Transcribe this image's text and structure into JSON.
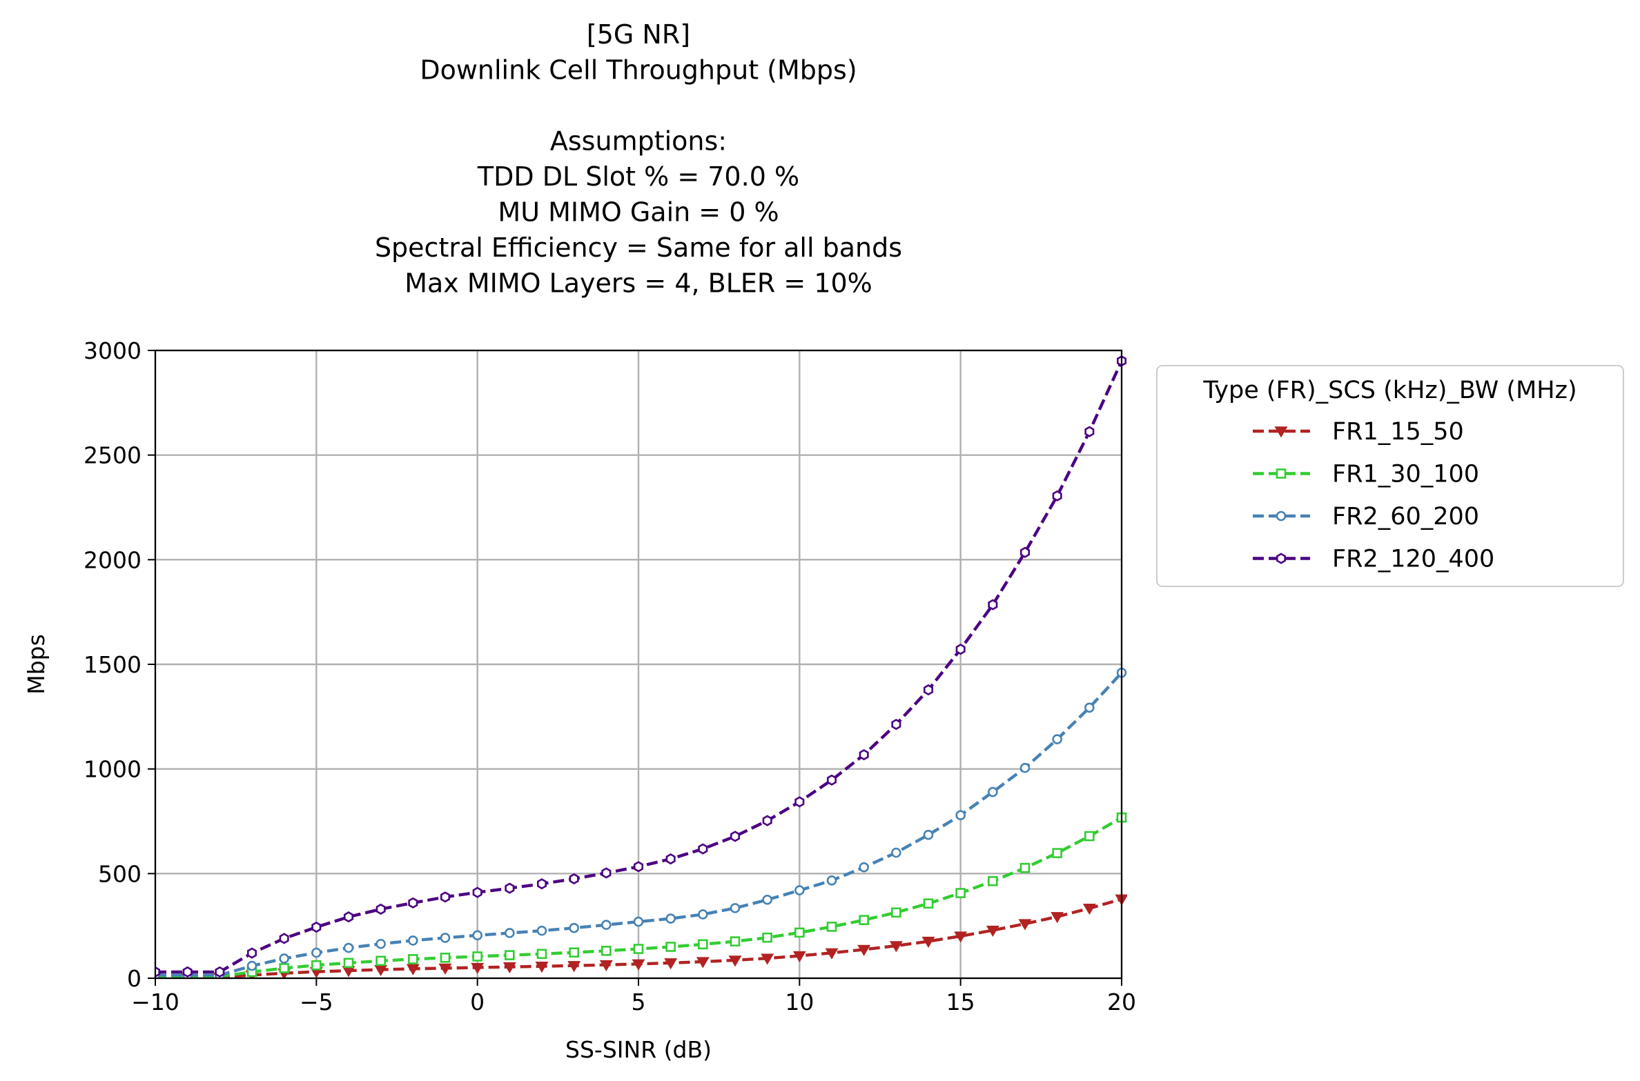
{
  "chart_data": {
    "type": "line",
    "title_lines": [
      "[5G NR]",
      "Downlink Cell Throughput (Mbps)",
      "",
      "Assumptions:",
      "TDD DL Slot % = 70.0 %",
      "MU MIMO Gain = 0 %",
      "Spectral Efficiency = Same for all bands",
      "Max MIMO Layers = 4, BLER = 10%"
    ],
    "xlabel": "SS-SINR (dB)",
    "ylabel": "Mbps",
    "xlim": [
      -10,
      20
    ],
    "ylim": [
      0,
      3000
    ],
    "x_ticks": [
      -10,
      -5,
      0,
      5,
      10,
      15,
      20
    ],
    "x_tick_labels": [
      "−10",
      "−5",
      "0",
      "5",
      "10",
      "15",
      "20"
    ],
    "y_ticks": [
      0,
      500,
      1000,
      1500,
      2000,
      2500,
      3000
    ],
    "y_tick_labels": [
      "0",
      "500",
      "1000",
      "1500",
      "2000",
      "2500",
      "3000"
    ],
    "grid": true,
    "legend": {
      "title": "Type (FR)_SCS (kHz)_BW (MHz)",
      "placement": "outside-upper-right"
    },
    "x": [
      -10,
      -9,
      -8,
      -7,
      -6,
      -5,
      -4,
      -3,
      -2,
      -1,
      0,
      1,
      2,
      3,
      4,
      5,
      6,
      7,
      8,
      9,
      10,
      11,
      12,
      13,
      14,
      15,
      16,
      17,
      18,
      19,
      20
    ],
    "series": [
      {
        "name": "FR1_15_50",
        "color": "#b22222",
        "marker": "triangle-down",
        "values": [
          4,
          4,
          4,
          15,
          24,
          31,
          36,
          41,
          45,
          48,
          51,
          54,
          57,
          60,
          64,
          68,
          73,
          79,
          86,
          95,
          107,
          121,
          137,
          155,
          176,
          201,
          229,
          260,
          294,
          334,
          378
        ]
      },
      {
        "name": "FR1_30_100",
        "color": "#32cd32",
        "marker": "square",
        "values": [
          8,
          8,
          8,
          30,
          48,
          62,
          73,
          83,
          91,
          98,
          104,
          110,
          116,
          123,
          131,
          140,
          150,
          162,
          176,
          194,
          218,
          246,
          278,
          314,
          357,
          407,
          464,
          527,
          598,
          679,
          768
        ]
      },
      {
        "name": "FR2_60_200",
        "color": "#4682b4",
        "marker": "circle",
        "values": [
          15,
          15,
          15,
          59,
          94,
          122,
          145,
          164,
          180,
          193,
          205,
          216,
          227,
          240,
          255,
          270,
          285,
          305,
          335,
          375,
          420,
          467,
          530,
          600,
          685,
          779,
          890,
          1005,
          1142,
          1293,
          1460
        ]
      },
      {
        "name": "FR2_120_400",
        "color": "#4b0082",
        "marker": "hexagon",
        "values": [
          30,
          30,
          30,
          120,
          190,
          244,
          293,
          330,
          360,
          388,
          410,
          430,
          451,
          475,
          503,
          533,
          570,
          618,
          678,
          753,
          843,
          947,
          1068,
          1213,
          1378,
          1572,
          1785,
          2035,
          2305,
          2612,
          2950
        ]
      }
    ]
  }
}
